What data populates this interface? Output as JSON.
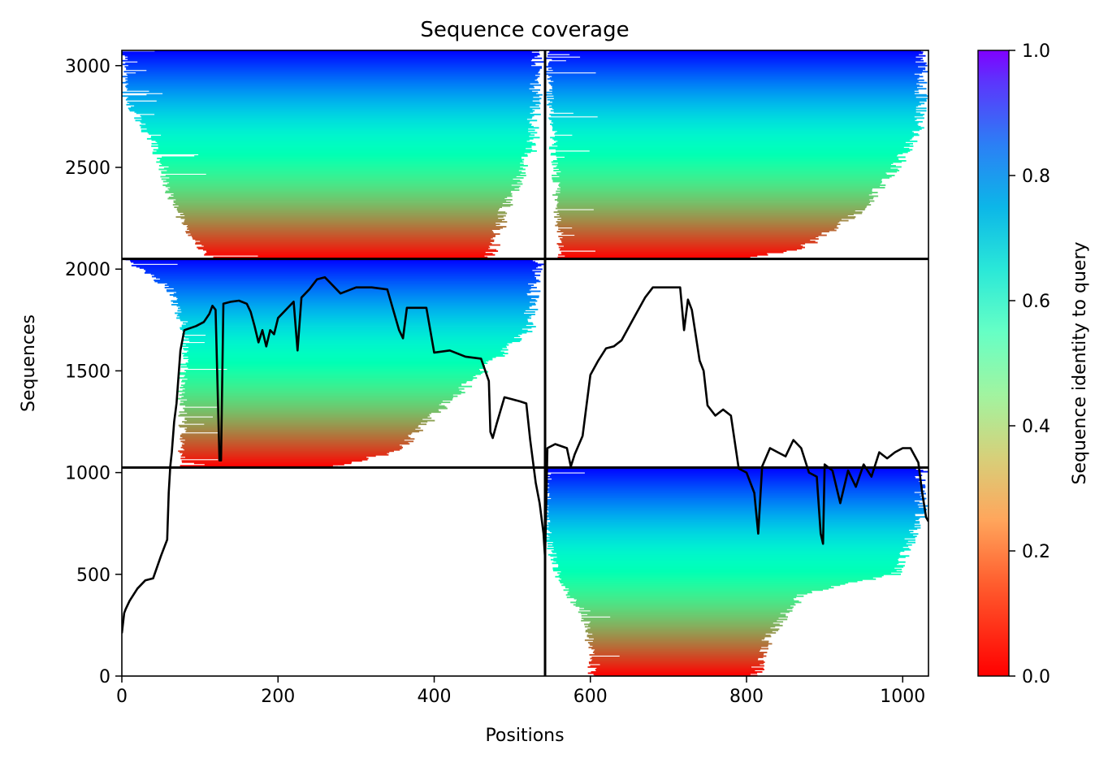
{
  "chart_data": {
    "type": "heatmap",
    "title": "Sequence coverage",
    "xlabel": "Positions",
    "ylabel": "Sequences",
    "xlim": [
      0,
      1033
    ],
    "ylim": [
      0,
      3075
    ],
    "xticks": [
      0,
      200,
      400,
      600,
      800,
      1000
    ],
    "yticks": [
      0,
      500,
      1000,
      1500,
      2000,
      2500,
      3000
    ],
    "colorbar": {
      "label": "Sequence identity to query",
      "range": [
        0.0,
        1.0
      ],
      "ticks": [
        "0.0",
        "0.2",
        "0.4",
        "0.6",
        "0.8",
        "1.0"
      ],
      "colormap": "rainbow_r"
    },
    "dividers": {
      "x": 542,
      "y": [
        1025,
        2050
      ]
    },
    "blocks": [
      {
        "x0": 0,
        "x1": 542,
        "y0": 2050,
        "y1": 3075,
        "left_edge": [
          [
            3075,
            0
          ],
          [
            2850,
            0
          ],
          [
            2600,
            40
          ],
          [
            2350,
            60
          ],
          [
            2200,
            80
          ],
          [
            2050,
            110
          ]
        ],
        "right_edge": [
          [
            3075,
            542
          ],
          [
            2600,
            535
          ],
          [
            2300,
            500
          ],
          [
            2050,
            480
          ]
        ]
      },
      {
        "x0": 542,
        "x1": 1033,
        "y0": 2050,
        "y1": 3075,
        "left_edge": [
          [
            3075,
            542
          ],
          [
            2050,
            560
          ]
        ],
        "right_edge": [
          [
            3075,
            1033
          ],
          [
            2700,
            1033
          ],
          [
            2500,
            1000
          ],
          [
            2300,
            960
          ],
          [
            2100,
            880
          ],
          [
            2050,
            800
          ]
        ]
      },
      {
        "x0": 0,
        "x1": 542,
        "y0": 1025,
        "y1": 2050,
        "left_edge": [
          [
            2050,
            0
          ],
          [
            1900,
            60
          ],
          [
            1650,
            80
          ],
          [
            1400,
            75
          ],
          [
            1150,
            75
          ],
          [
            1025,
            75
          ]
        ],
        "right_edge": [
          [
            2050,
            542
          ],
          [
            1700,
            530
          ],
          [
            1600,
            500
          ],
          [
            1250,
            400
          ],
          [
            1100,
            360
          ],
          [
            1025,
            280
          ]
        ]
      },
      {
        "x0": 542,
        "x1": 1033,
        "y0": 0,
        "y1": 1025,
        "left_edge": [
          [
            1025,
            542
          ],
          [
            700,
            542
          ],
          [
            450,
            560
          ],
          [
            300,
            590
          ],
          [
            100,
            600
          ],
          [
            0,
            600
          ]
        ],
        "right_edge": [
          [
            1025,
            1033
          ],
          [
            800,
            1033
          ],
          [
            500,
            1000
          ],
          [
            400,
            880
          ],
          [
            200,
            840
          ],
          [
            0,
            820
          ]
        ]
      }
    ],
    "series": [
      {
        "type": "line",
        "x": [
          0,
          3,
          5,
          10,
          20,
          30,
          40,
          50,
          55,
          58,
          60,
          62,
          64,
          67,
          70,
          75,
          80,
          95,
          105,
          112,
          116,
          120,
          125,
          127,
          130,
          140,
          150,
          160,
          165,
          170,
          175,
          180,
          185,
          190,
          195,
          200,
          210,
          220,
          225,
          230,
          240,
          250,
          260,
          280,
          300,
          320,
          340,
          355,
          360,
          365,
          370,
          380,
          390,
          400,
          420,
          440,
          460,
          470,
          472,
          475,
          480,
          490,
          500,
          510,
          518,
          523,
          530,
          535,
          540,
          542,
          545,
          555,
          570,
          575,
          580,
          590,
          600,
          610,
          620,
          630,
          640,
          650,
          660,
          670,
          680,
          700,
          715,
          720,
          725,
          730,
          740,
          745,
          750,
          760,
          770,
          780,
          790,
          800,
          810,
          815,
          820,
          830,
          840,
          850,
          860,
          870,
          880,
          890,
          895,
          898,
          900,
          910,
          920,
          930,
          940,
          950,
          960,
          970,
          980,
          990,
          1000,
          1010,
          1020,
          1025,
          1030,
          1033
        ],
        "y": [
          210,
          310,
          330,
          370,
          430,
          470,
          480,
          590,
          640,
          670,
          900,
          1030,
          1100,
          1250,
          1340,
          1600,
          1700,
          1720,
          1740,
          1780,
          1820,
          1800,
          1060,
          1060,
          1830,
          1840,
          1845,
          1830,
          1790,
          1720,
          1640,
          1700,
          1620,
          1700,
          1680,
          1760,
          1800,
          1840,
          1600,
          1860,
          1900,
          1950,
          1960,
          1880,
          1910,
          1910,
          1900,
          1700,
          1660,
          1810,
          1810,
          1810,
          1810,
          1590,
          1600,
          1570,
          1560,
          1450,
          1200,
          1170,
          1240,
          1370,
          1360,
          1350,
          1340,
          1160,
          950,
          850,
          700,
          580,
          1120,
          1140,
          1120,
          1030,
          1090,
          1180,
          1480,
          1550,
          1610,
          1620,
          1650,
          1720,
          1790,
          1860,
          1910,
          1910,
          1910,
          1700,
          1850,
          1800,
          1550,
          1500,
          1330,
          1280,
          1310,
          1280,
          1020,
          1000,
          900,
          700,
          1030,
          1120,
          1100,
          1080,
          1160,
          1120,
          1000,
          980,
          700,
          650,
          1040,
          1010,
          850,
          1010,
          930,
          1040,
          980,
          1100,
          1070,
          1100,
          1120,
          1120,
          1050,
          900,
          780,
          760
        ]
      }
    ]
  }
}
